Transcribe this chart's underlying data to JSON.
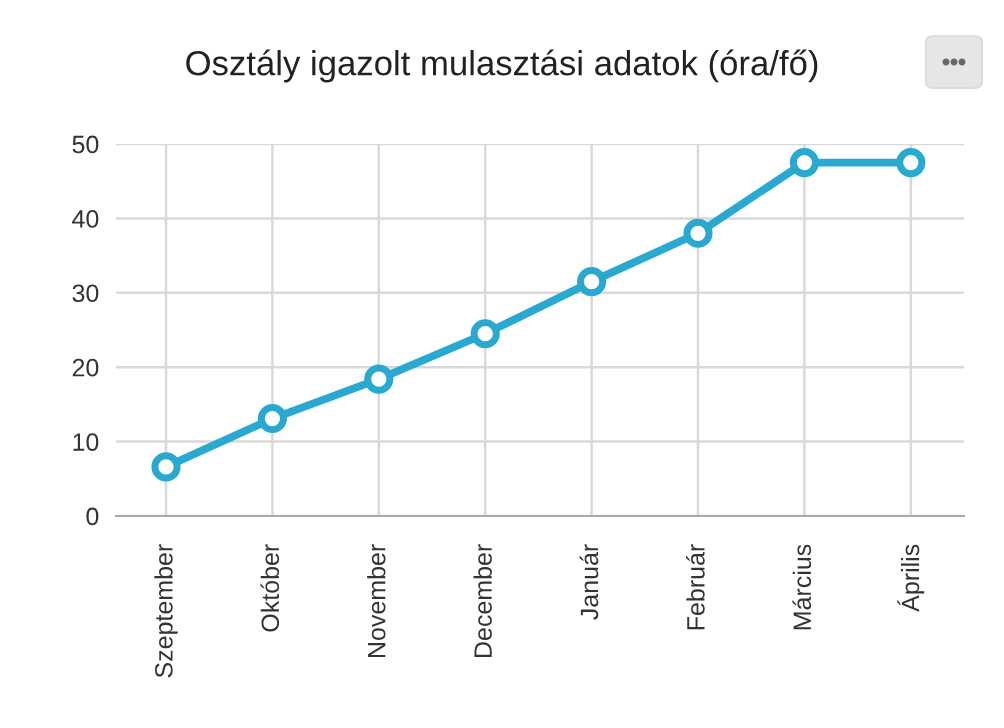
{
  "chart_data": {
    "type": "line",
    "title": "Osztály igazolt mulasztási adatok (óra/fő)",
    "categories": [
      "Szeptember",
      "Október",
      "November",
      "December",
      "Január",
      "Február",
      "Március",
      "Április"
    ],
    "series": [
      {
        "color": "#29a9cf",
        "values": [
          6.6,
          13.1,
          18.4,
          24.5,
          31.5,
          38.0,
          47.5,
          47.5
        ]
      }
    ],
    "ylim": [
      0,
      50
    ],
    "yticks": [
      0,
      10,
      20,
      30,
      40,
      50
    ],
    "grid": true,
    "marker": "circle",
    "line_style": "solid",
    "legend": false
  }
}
